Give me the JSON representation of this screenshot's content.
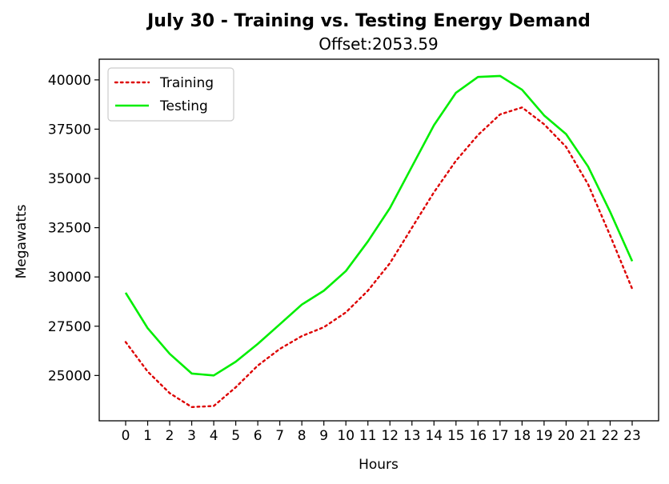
{
  "chart_data": {
    "type": "line",
    "title": "July 30 - Training vs. Testing Energy Demand",
    "subtitle": "Offset:2053.59",
    "xlabel": "Hours",
    "ylabel": "Megawatts",
    "x": [
      0,
      1,
      2,
      3,
      4,
      5,
      6,
      7,
      8,
      9,
      10,
      11,
      12,
      13,
      14,
      15,
      16,
      17,
      18,
      19,
      20,
      21,
      22,
      23
    ],
    "x_tick_labels": [
      "0",
      "1",
      "2",
      "3",
      "4",
      "5",
      "6",
      "7",
      "8",
      "9",
      "10",
      "11",
      "12",
      "13",
      "14",
      "15",
      "16",
      "17",
      "18",
      "19",
      "20",
      "21",
      "22",
      "23"
    ],
    "y_ticks": [
      25000,
      27500,
      30000,
      32500,
      35000,
      37500,
      40000
    ],
    "y_tick_labels": [
      "25000",
      "27500",
      "30000",
      "32500",
      "35000",
      "37500",
      "40000"
    ],
    "xlim": [
      -1.2,
      24.2
    ],
    "ylim": [
      22700,
      41050
    ],
    "grid": false,
    "legend_position": "upper-left",
    "series": [
      {
        "name": "Training",
        "style": "dotted",
        "color": "#dd0000",
        "values": [
          26700,
          25200,
          24100,
          23400,
          23450,
          24400,
          25500,
          26350,
          27000,
          27450,
          28200,
          29300,
          30700,
          32500,
          34300,
          35900,
          37200,
          38250,
          38600,
          37750,
          36600,
          34700,
          32100,
          29400
        ]
      },
      {
        "name": "Testing",
        "style": "solid",
        "color": "#00ee00",
        "values": [
          29200,
          27400,
          26100,
          25100,
          25000,
          25700,
          26600,
          27600,
          28600,
          29300,
          30300,
          31800,
          33500,
          35600,
          37700,
          39350,
          40150,
          40200,
          39500,
          38200,
          37250,
          35600,
          33300,
          30800
        ]
      }
    ]
  }
}
